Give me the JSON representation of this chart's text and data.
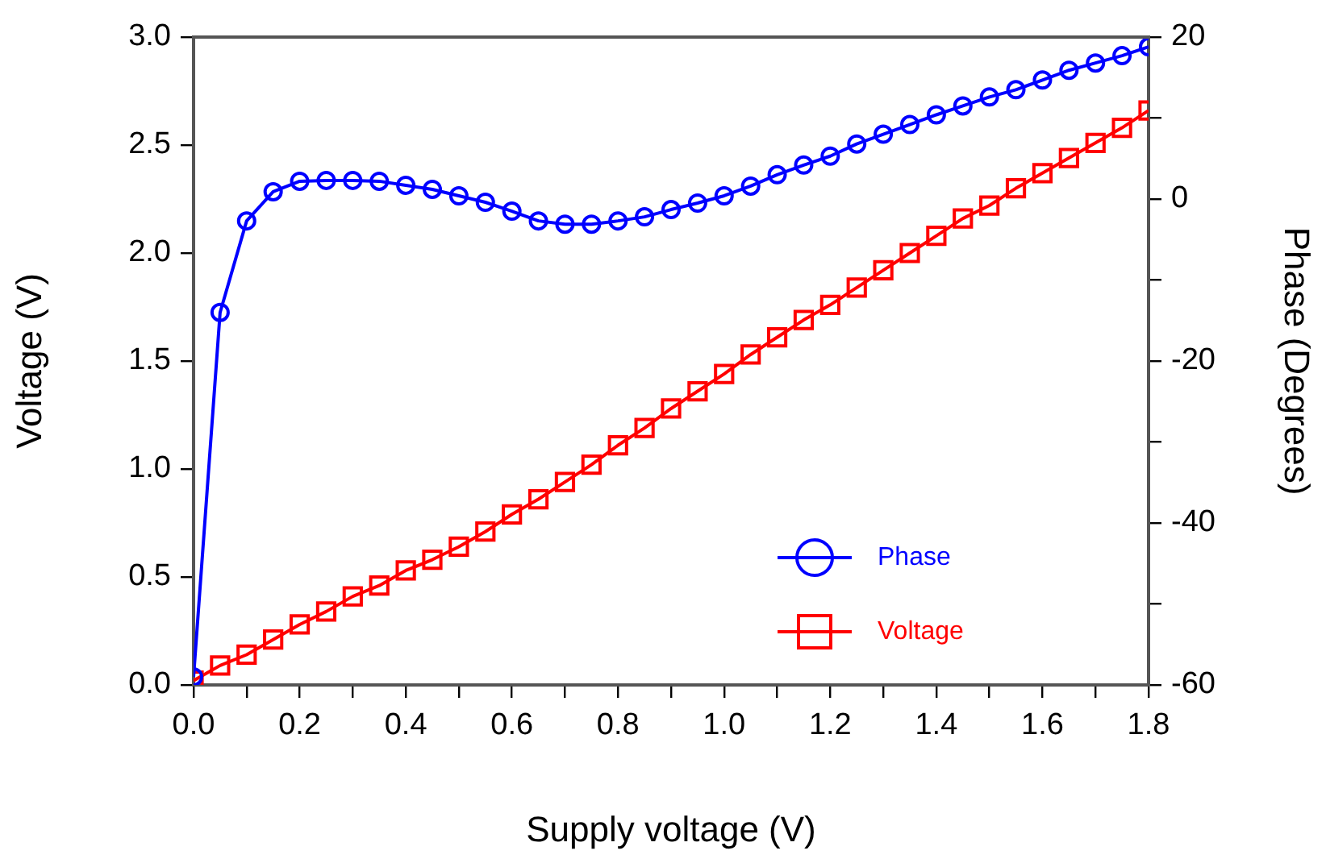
{
  "chart_data": {
    "type": "line",
    "xlabel": "Supply voltage (V)",
    "ylabel": "Voltage (V)",
    "y2label": "Phase (Degrees)",
    "x": [
      0,
      0.05,
      0.1,
      0.15,
      0.2,
      0.25,
      0.3,
      0.35,
      0.4,
      0.45,
      0.5,
      0.55,
      0.6,
      0.65,
      0.7,
      0.75,
      0.8,
      0.85,
      0.9,
      0.95,
      1.0,
      1.05,
      1.1,
      1.15,
      1.2,
      1.25,
      1.3,
      1.35,
      1.4,
      1.45,
      1.5,
      1.55,
      1.6,
      1.65,
      1.7,
      1.75,
      1.8
    ],
    "series": [
      {
        "name": "Phase",
        "color": "#0000ff",
        "axis": "y2",
        "marker": "circle",
        "values": [
          -59,
          -14,
          -2.7,
          0.9,
          2.2,
          2.3,
          2.3,
          2.2,
          1.7,
          1.2,
          0.4,
          -0.4,
          -1.5,
          -2.7,
          -3.1,
          -3.1,
          -2.7,
          -2.2,
          -1.3,
          -0.5,
          0.4,
          1.6,
          3.0,
          4.2,
          5.3,
          6.8,
          8.0,
          9.2,
          10.4,
          11.5,
          12.6,
          13.5,
          14.7,
          15.9,
          16.8,
          17.7,
          18.8
        ]
      },
      {
        "name": "Voltage",
        "color": "#ff0000",
        "marker": "square",
        "values": [
          0.02,
          0.09,
          0.14,
          0.21,
          0.28,
          0.34,
          0.41,
          0.46,
          0.53,
          0.58,
          0.64,
          0.71,
          0.79,
          0.86,
          0.94,
          1.02,
          1.11,
          1.19,
          1.28,
          1.36,
          1.44,
          1.53,
          1.61,
          1.69,
          1.76,
          1.84,
          1.92,
          2.0,
          2.08,
          2.16,
          2.22,
          2.3,
          2.37,
          2.44,
          2.51,
          2.58,
          2.66
        ]
      }
    ],
    "xlim": [
      0,
      1.8
    ],
    "xticks": [
      {
        "value": 0,
        "label": "0.0"
      },
      {
        "value": 0.1,
        "label": null
      },
      0.2,
      {
        "value": 0.3,
        "label": null
      },
      0.4,
      {
        "value": 0.5,
        "label": null
      },
      0.6,
      {
        "value": 0.7,
        "label": null
      },
      0.8,
      {
        "value": 0.9,
        "label": null
      },
      {
        "value": 1,
        "label": "1.0"
      },
      {
        "value": 1.1,
        "label": null
      },
      1.2,
      {
        "value": 1.3,
        "label": null
      },
      1.4,
      {
        "value": 1.5,
        "label": null
      },
      1.6,
      {
        "value": 1.7,
        "label": null
      },
      1.8
    ],
    "ylim": [
      0,
      3
    ],
    "yticks": [
      {
        "value": 0,
        "label": "0.0"
      },
      0.5,
      {
        "value": 1,
        "label": "1.0"
      },
      1.5,
      {
        "value": 2,
        "label": "2.0"
      },
      2.5,
      {
        "value": 3,
        "label": "3.0"
      }
    ],
    "y2lim": [
      -60,
      20
    ],
    "y2ticks": [
      -60,
      {
        "value": -50,
        "label": null
      },
      -40,
      {
        "value": -30,
        "label": null
      },
      -20,
      {
        "value": -10,
        "label": null
      },
      0,
      {
        "value": 10,
        "label": null
      },
      20
    ],
    "grid": false,
    "legend": "bottom right"
  }
}
